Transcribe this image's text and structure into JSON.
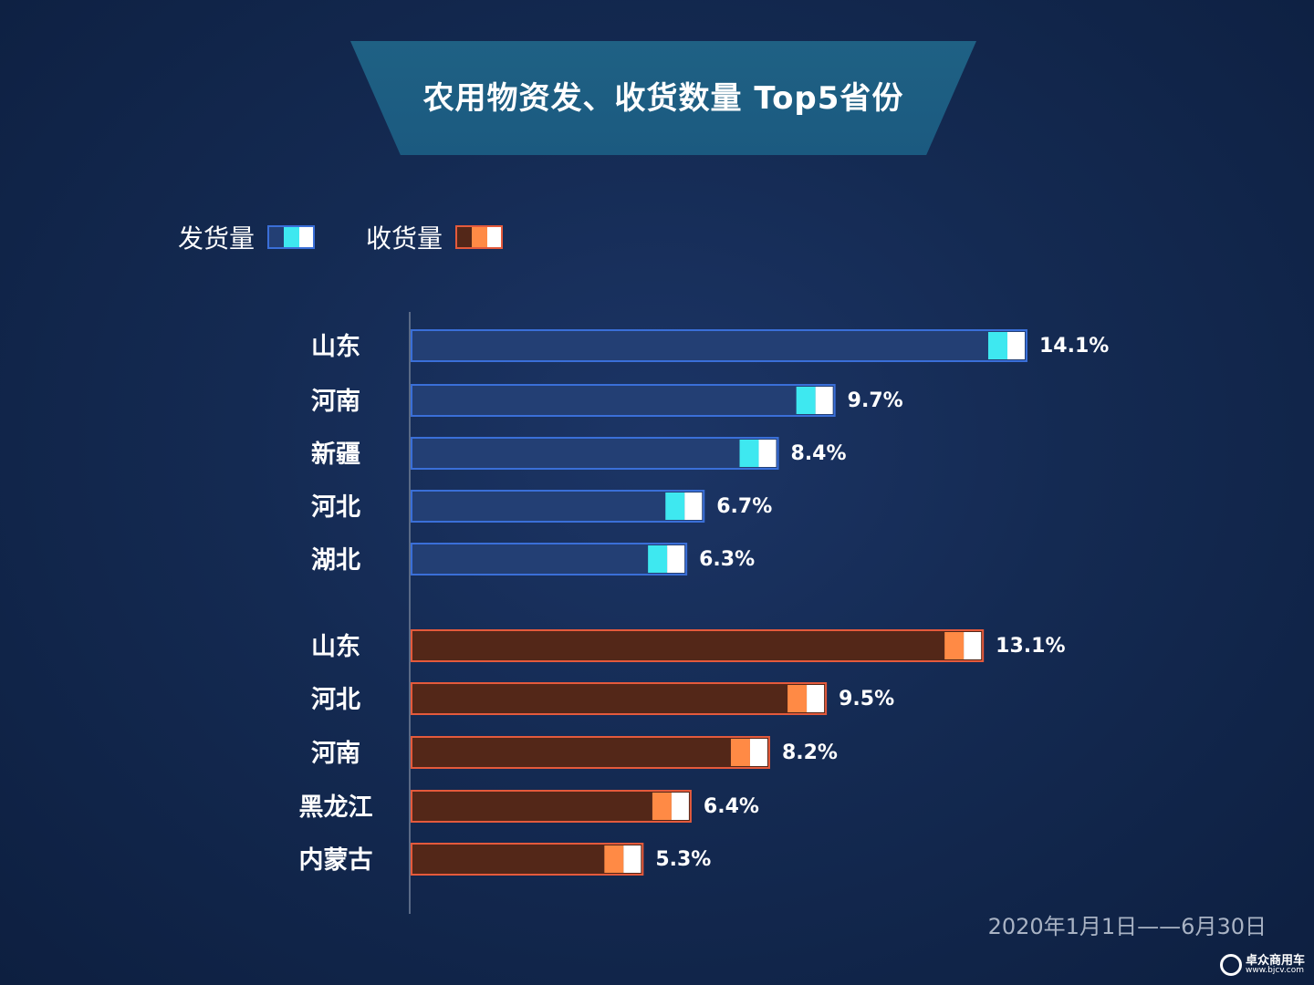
{
  "title": "农用物资发、收货数量 Top5省份",
  "legend": [
    {
      "label": "发货量",
      "fill": "#233f74",
      "border": "#3a6fd8",
      "accent": "#3ee8f0"
    },
    {
      "label": "收货量",
      "fill": "#532718",
      "border": "#e45a3c",
      "accent": "#ff8a45"
    }
  ],
  "date_range": "2020年1月1日——6月30日",
  "logo": {
    "name": "卓众商用车",
    "url": "www.bjcv.com"
  },
  "chart_data": [
    {
      "type": "bar",
      "orientation": "horizontal",
      "series_name": "发货量",
      "categories": [
        "山东",
        "河南",
        "新疆",
        "河北",
        "湖北"
      ],
      "values": [
        14.1,
        9.7,
        8.4,
        6.7,
        6.3
      ],
      "labels": [
        "14.1%",
        "9.7%",
        "8.4%",
        "6.7%",
        "6.3%"
      ],
      "unit": "%",
      "fill": "#233f74",
      "border": "#3a6fd8",
      "accent": "#3ee8f0"
    },
    {
      "type": "bar",
      "orientation": "horizontal",
      "series_name": "收货量",
      "categories": [
        "山东",
        "河北",
        "河南",
        "黑龙江",
        "内蒙古"
      ],
      "values": [
        13.1,
        9.5,
        8.2,
        6.4,
        5.3
      ],
      "labels": [
        "13.1%",
        "9.5%",
        "8.2%",
        "6.4%",
        "5.3%"
      ],
      "unit": "%",
      "fill": "#532718",
      "border": "#e45a3c",
      "accent": "#ff8a45"
    }
  ]
}
